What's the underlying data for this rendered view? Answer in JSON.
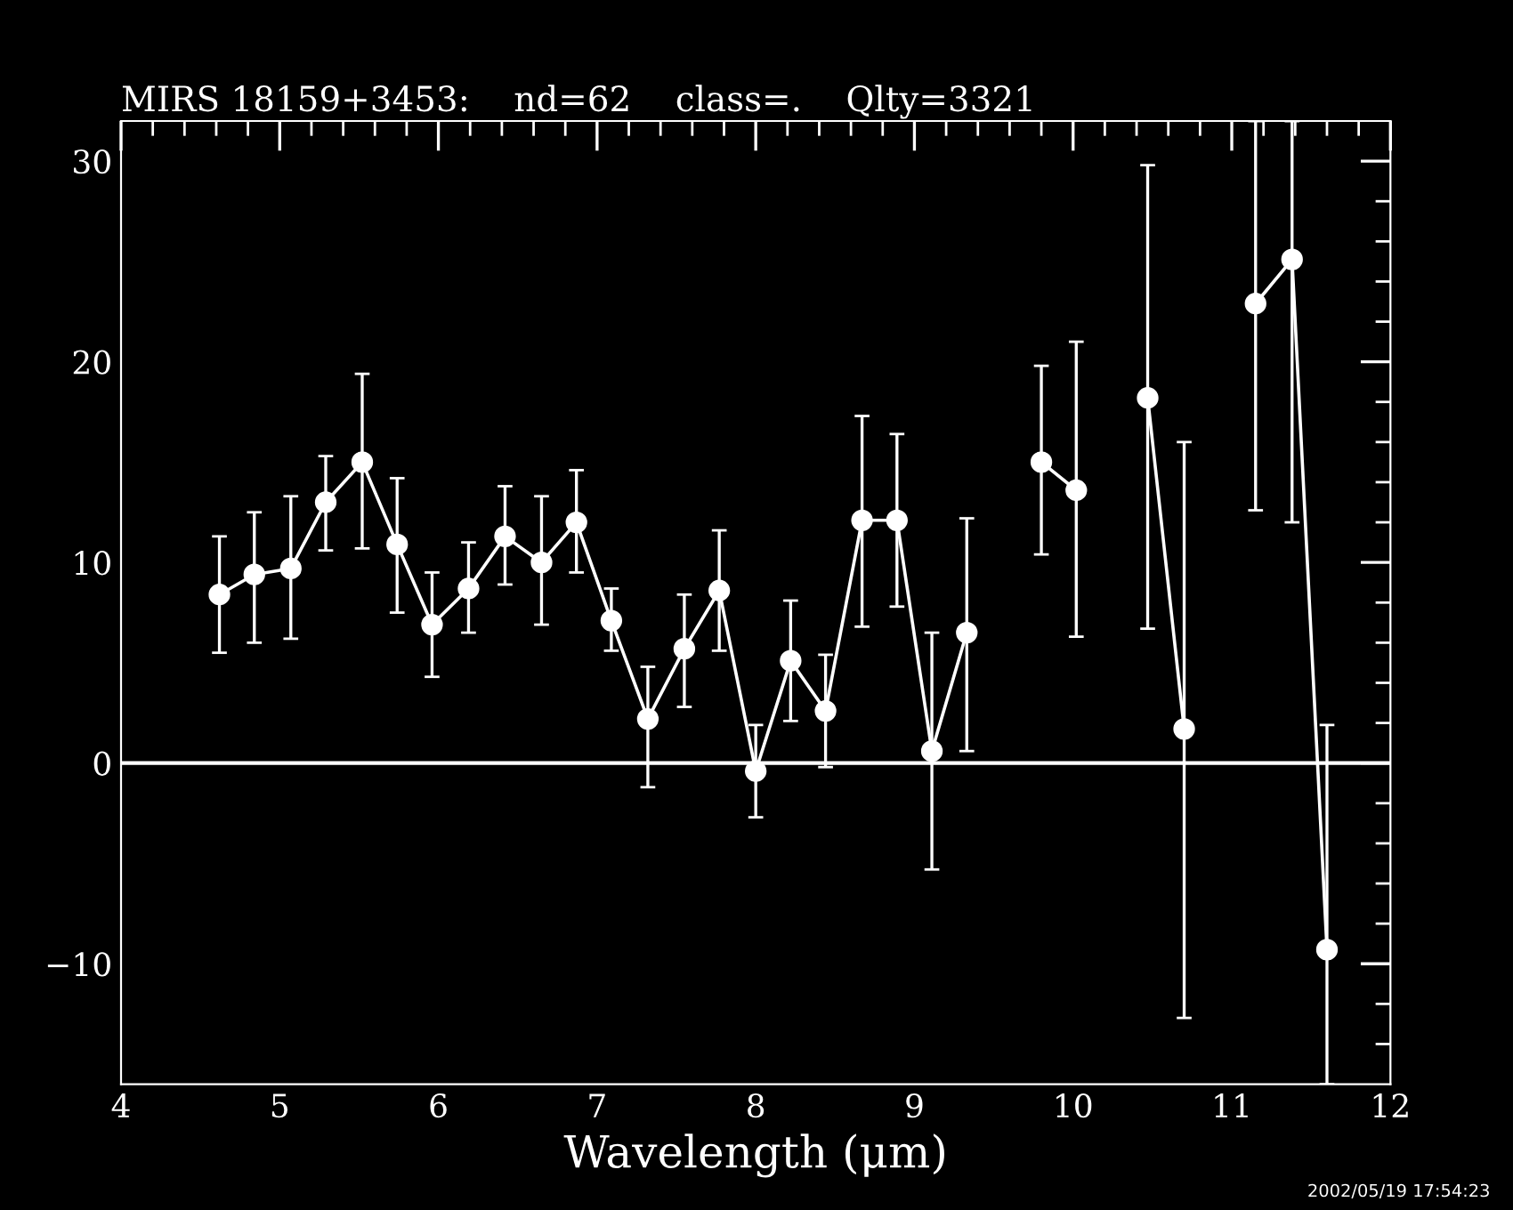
{
  "chart_data": {
    "type": "line",
    "title": "MIRS 18159+3453:    nd=62    class=.    Qlty=3321",
    "xlabel": "Wavelength (μm)",
    "annotations": [
      "2002/05/19 17:54:23"
    ],
    "series": [
      {
        "color": "#ffffff",
        "x": [
          4.62,
          4.84,
          5.07,
          5.29,
          5.52,
          5.74,
          5.96,
          6.19,
          6.42,
          6.65,
          6.87,
          7.09,
          7.32,
          7.55,
          7.77,
          8.0,
          8.22,
          8.44,
          8.67,
          8.89,
          9.11,
          9.33
        ],
        "values": [
          8.4,
          9.4,
          9.7,
          13.0,
          15.0,
          10.9,
          6.9,
          8.7,
          11.3,
          10.0,
          12.0,
          7.1,
          2.2,
          5.7,
          8.6,
          -0.4,
          5.1,
          2.6,
          12.1,
          12.1,
          0.6,
          6.5
        ],
        "errors": [
          [
            5.5,
            11.3
          ],
          [
            6.0,
            12.5
          ],
          [
            6.2,
            13.3
          ],
          [
            10.6,
            15.3
          ],
          [
            10.7,
            19.4
          ],
          [
            7.5,
            14.2
          ],
          [
            4.3,
            9.5
          ],
          [
            6.5,
            11.0
          ],
          [
            8.9,
            13.8
          ],
          [
            6.9,
            13.3
          ],
          [
            9.5,
            14.6
          ],
          [
            5.6,
            8.7
          ],
          [
            -1.2,
            4.8
          ],
          [
            2.8,
            8.4
          ],
          [
            5.6,
            11.6
          ],
          [
            -2.7,
            1.9
          ],
          [
            2.1,
            8.1
          ],
          [
            -0.2,
            5.4
          ],
          [
            6.8,
            17.3
          ],
          [
            7.8,
            16.4
          ],
          [
            -5.3,
            6.5
          ],
          [
            0.6,
            12.2
          ]
        ]
      },
      {
        "color": "#ffffff",
        "x": [
          9.8,
          10.02
        ],
        "values": [
          15.0,
          13.6
        ],
        "errors": [
          [
            10.4,
            19.8
          ],
          [
            6.3,
            21.0
          ]
        ]
      },
      {
        "color": "#ffffff",
        "x": [
          10.47,
          10.7
        ],
        "values": [
          18.2,
          1.7
        ],
        "errors": [
          [
            6.7,
            29.8
          ],
          [
            -12.7,
            16.0
          ]
        ]
      },
      {
        "color": "#ffffff",
        "x": [
          11.15,
          11.38,
          11.6
        ],
        "values": [
          22.9,
          25.1,
          -9.3
        ],
        "errors": [
          [
            12.6,
            32
          ],
          [
            12.0,
            32
          ],
          [
            -16,
            1.9
          ]
        ]
      }
    ],
    "xlim": [
      4,
      12
    ],
    "ylim": [
      -16,
      32
    ],
    "xticks": [
      4,
      {
        "value": 4.2,
        "label": null
      },
      {
        "value": 4.4,
        "label": null
      },
      {
        "value": 4.6,
        "label": null
      },
      {
        "value": 4.8,
        "label": null
      },
      5,
      {
        "value": 5.2,
        "label": null
      },
      {
        "value": 5.4,
        "label": null
      },
      {
        "value": 5.6,
        "label": null
      },
      {
        "value": 5.8,
        "label": null
      },
      6,
      {
        "value": 6.2,
        "label": null
      },
      {
        "value": 6.4,
        "label": null
      },
      {
        "value": 6.6,
        "label": null
      },
      {
        "value": 6.8,
        "label": null
      },
      7,
      {
        "value": 7.2,
        "label": null
      },
      {
        "value": 7.4,
        "label": null
      },
      {
        "value": 7.6,
        "label": null
      },
      {
        "value": 7.8,
        "label": null
      },
      8,
      {
        "value": 8.2,
        "label": null
      },
      {
        "value": 8.4,
        "label": null
      },
      {
        "value": 8.6,
        "label": null
      },
      {
        "value": 8.8,
        "label": null
      },
      9,
      {
        "value": 9.2,
        "label": null
      },
      {
        "value": 9.4,
        "label": null
      },
      {
        "value": 9.6,
        "label": null
      },
      {
        "value": 9.8,
        "label": null
      },
      10,
      {
        "value": 10.2,
        "label": null
      },
      {
        "value": 10.4,
        "label": null
      },
      {
        "value": 10.6,
        "label": null
      },
      {
        "value": 10.8,
        "label": null
      },
      11,
      {
        "value": 11.2,
        "label": null
      },
      {
        "value": 11.4,
        "label": null
      },
      {
        "value": 11.6,
        "label": null
      },
      {
        "value": 11.8,
        "label": null
      },
      12
    ],
    "yticks": [
      {
        "value": -14,
        "label": null
      },
      {
        "value": -12,
        "label": null
      },
      {
        "value": -10,
        "label": "−10"
      },
      {
        "value": -8,
        "label": null
      },
      {
        "value": -6,
        "label": null
      },
      {
        "value": -4,
        "label": null
      },
      {
        "value": -2,
        "label": null
      },
      0,
      {
        "value": 2,
        "label": null
      },
      {
        "value": 4,
        "label": null
      },
      {
        "value": 6,
        "label": null
      },
      {
        "value": 8,
        "label": null
      },
      10,
      {
        "value": 12,
        "label": null
      },
      {
        "value": 14,
        "label": null
      },
      {
        "value": 16,
        "label": null
      },
      {
        "value": 18,
        "label": null
      },
      20,
      {
        "value": 22,
        "label": null
      },
      {
        "value": 24,
        "label": null
      },
      {
        "value": 26,
        "label": null
      },
      {
        "value": 28,
        "label": null
      },
      30
    ],
    "ref_lines": [
      {
        "axis": "y",
        "value": 0,
        "color": "#ffffff"
      }
    ],
    "grid": false,
    "legend": false,
    "marker": "circle",
    "line_style": "solid"
  }
}
